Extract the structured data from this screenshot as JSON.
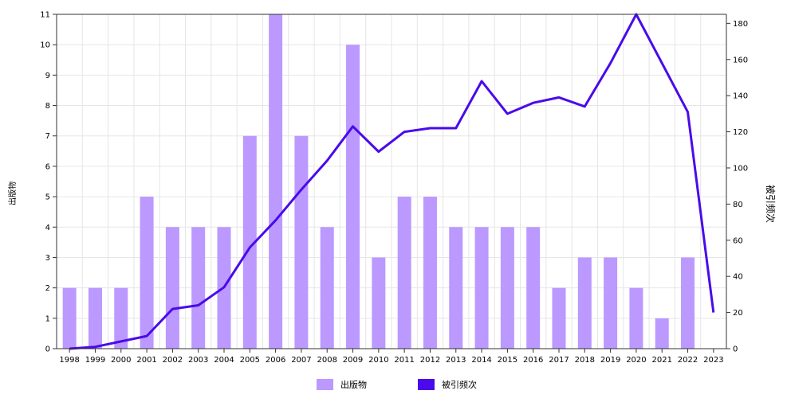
{
  "chart_data": {
    "type": "bar",
    "categories": [
      "1998",
      "1999",
      "2000",
      "2001",
      "2002",
      "2003",
      "2004",
      "2005",
      "2006",
      "2007",
      "2008",
      "2009",
      "2010",
      "2011",
      "2012",
      "2013",
      "2014",
      "2015",
      "2016",
      "2017",
      "2018",
      "2019",
      "2020",
      "2021",
      "2022",
      "2023"
    ],
    "series": [
      {
        "name": "出版物",
        "type": "bar",
        "axis": "left",
        "values": [
          2,
          2,
          2,
          5,
          4,
          4,
          4,
          7,
          11,
          7,
          4,
          10,
          3,
          5,
          5,
          4,
          4,
          4,
          4,
          2,
          3,
          3,
          2,
          1,
          3,
          0
        ]
      },
      {
        "name": "被引频次",
        "type": "line",
        "axis": "right",
        "values": [
          0,
          1,
          4,
          7,
          22,
          24,
          34,
          56,
          71,
          88,
          104,
          123,
          109,
          120,
          122,
          122,
          148,
          130,
          136,
          139,
          134,
          158,
          185,
          158,
          131,
          20
        ]
      }
    ],
    "ylabel_left": "出版物",
    "ylabel_right": "被引频次",
    "ylim_left": [
      0,
      11
    ],
    "ylim_right": [
      0,
      185
    ],
    "yticks_left": [
      0,
      1,
      2,
      3,
      4,
      5,
      6,
      7,
      8,
      9,
      10,
      11
    ],
    "yticks_right": [
      0,
      20,
      40,
      60,
      80,
      100,
      120,
      140,
      160,
      180
    ],
    "grid": true,
    "legend_position": "bottom",
    "colors": {
      "bar": "#bb99ff",
      "line": "#4a0aeb",
      "grid": "#e6e6e6",
      "axis": "#333333"
    }
  }
}
